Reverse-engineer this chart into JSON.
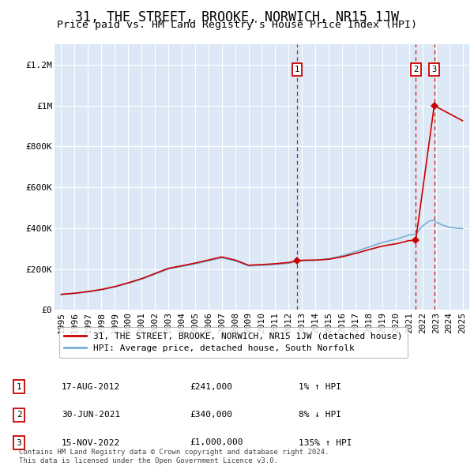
{
  "title": "31, THE STREET, BROOKE, NORWICH, NR15 1JW",
  "subtitle": "Price paid vs. HM Land Registry's House Price Index (HPI)",
  "background_color": "#ffffff",
  "chart_bg_color": "#dce8f5",
  "grid_color": "#ffffff",
  "ylim": [
    0,
    1300000
  ],
  "xlim_start": 1994.5,
  "xlim_end": 2025.5,
  "yticks": [
    0,
    200000,
    400000,
    600000,
    800000,
    1000000,
    1200000
  ],
  "ytick_labels": [
    "£0",
    "£200K",
    "£400K",
    "£600K",
    "£800K",
    "£1M",
    "£1.2M"
  ],
  "xticks": [
    1995,
    1996,
    1997,
    1998,
    1999,
    2000,
    2001,
    2002,
    2003,
    2004,
    2005,
    2006,
    2007,
    2008,
    2009,
    2010,
    2011,
    2012,
    2013,
    2014,
    2015,
    2016,
    2017,
    2018,
    2019,
    2020,
    2021,
    2022,
    2023,
    2024,
    2025
  ],
  "hpi_color": "#7aaed6",
  "sale_color": "#cc0000",
  "legend_sale_label": "31, THE STREET, BROOKE, NORWICH, NR15 1JW (detached house)",
  "legend_hpi_label": "HPI: Average price, detached house, South Norfolk",
  "sales": [
    {
      "date": 2012.63,
      "price": 241000,
      "label": "1"
    },
    {
      "date": 2021.5,
      "price": 340000,
      "label": "2"
    },
    {
      "date": 2022.88,
      "price": 1000000,
      "label": "3"
    }
  ],
  "table": [
    {
      "num": "1",
      "date": "17-AUG-2012",
      "price": "£241,000",
      "change": "1% ↑ HPI"
    },
    {
      "num": "2",
      "date": "30-JUN-2021",
      "price": "£340,000",
      "change": "8% ↓ HPI"
    },
    {
      "num": "3",
      "date": "15-NOV-2022",
      "price": "£1,000,000",
      "change": "135% ↑ HPI"
    }
  ],
  "footnote": "Contains HM Land Registry data © Crown copyright and database right 2024.\nThis data is licensed under the Open Government Licence v3.0.",
  "title_fontsize": 12,
  "subtitle_fontsize": 9.5,
  "tick_fontsize": 8
}
